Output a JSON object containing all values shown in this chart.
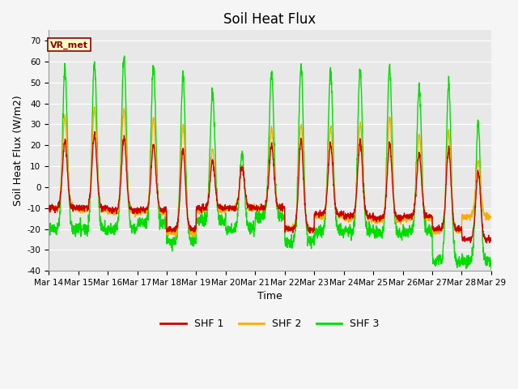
{
  "title": "Soil Heat Flux",
  "ylabel": "Soil Heat Flux (W/m2)",
  "xlabel": "Time",
  "ylim": [
    -40,
    75
  ],
  "yticks": [
    -40,
    -30,
    -20,
    -10,
    0,
    10,
    20,
    30,
    40,
    50,
    60,
    70
  ],
  "xtick_labels": [
    "Mar 14",
    "Mar 15",
    "Mar 16",
    "Mar 17",
    "Mar 18",
    "Mar 19",
    "Mar 20",
    "Mar 21",
    "Mar 22",
    "Mar 23",
    "Mar 24",
    "Mar 25",
    "Mar 26",
    "Mar 27",
    "Mar 28",
    "Mar 29"
  ],
  "colors": {
    "SHF1": "#cc0000",
    "SHF2": "#ffaa00",
    "SHF3": "#00dd00"
  },
  "legend_labels": [
    "SHF 1",
    "SHF 2",
    "SHF 3"
  ],
  "watermark_text": "VR_met",
  "watermark_color": "#8B0000",
  "watermark_bg": "#ffffcc",
  "fig_bg_color": "#f5f5f5",
  "plot_bg_color": "#e8e8e8",
  "grid_color": "#ffffff",
  "linewidth": 1.0,
  "title_fontsize": 12,
  "axis_fontsize": 9,
  "tick_fontsize": 7.5,
  "day_peaks_shf1": [
    22,
    25,
    24,
    20,
    18,
    12,
    10,
    20,
    22,
    20,
    22,
    20,
    16,
    18,
    7
  ],
  "day_peaks_shf2": [
    34,
    38,
    37,
    33,
    30,
    18,
    10,
    28,
    30,
    29,
    30,
    33,
    25,
    26,
    12
  ],
  "day_peaks_shf3": [
    57,
    60,
    63,
    58,
    53,
    45,
    16,
    55,
    58,
    56,
    56,
    58,
    47,
    50,
    31
  ],
  "day_nights_shf1": [
    -10,
    -10,
    -11,
    -11,
    -20,
    -10,
    -10,
    -10,
    -20,
    -13,
    -14,
    -15,
    -14,
    -20,
    -25
  ],
  "day_nights_shf2": [
    -10,
    -11,
    -12,
    -12,
    -22,
    -11,
    -10,
    -10,
    -20,
    -14,
    -15,
    -16,
    -15,
    -21,
    -14
  ],
  "day_nights_shf3": [
    -20,
    -20,
    -20,
    -17,
    -26,
    -16,
    -20,
    -14,
    -26,
    -21,
    -21,
    -22,
    -21,
    -35,
    -36
  ]
}
